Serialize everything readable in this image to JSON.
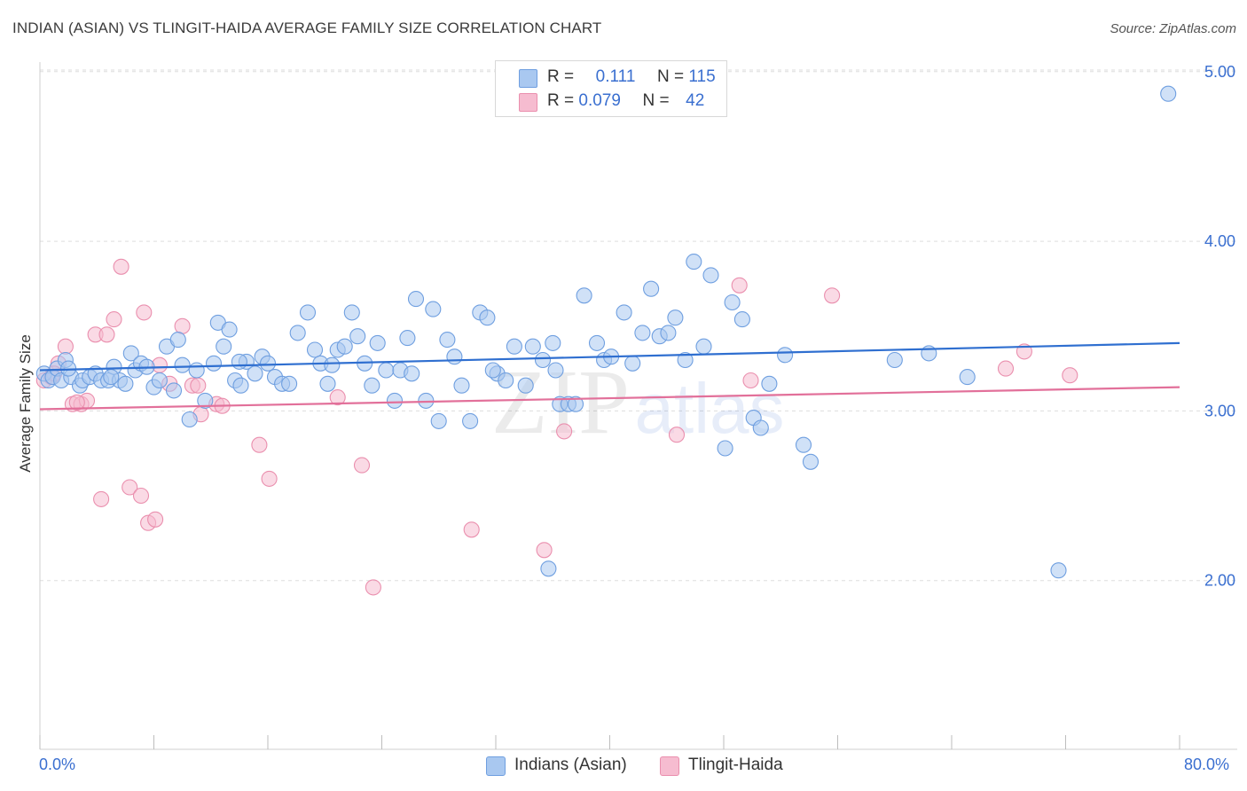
{
  "header": {
    "title": "INDIAN (ASIAN) VS TLINGIT-HAIDA AVERAGE FAMILY SIZE CORRELATION CHART",
    "source": "Source: ZipAtlas.com"
  },
  "watermark": {
    "zip": "ZIP",
    "atlas": "atlas"
  },
  "legend_top": {
    "rows": [
      {
        "r_label": "R =",
        "r_value": "0.111",
        "n_label": "N =",
        "n_value": "115"
      },
      {
        "r_label": "R =",
        "r_value": "0.079",
        "n_label": "N =",
        "n_value": "42"
      }
    ]
  },
  "legend_bottom": {
    "series_a": "Indians (Asian)",
    "series_b": "Tlingit-Haida"
  },
  "colors": {
    "blue_fill": "#a9c8f0",
    "blue_stroke": "#6f9fe0",
    "blue_line": "#2f6fd0",
    "pink_fill": "#f6bcd0",
    "pink_stroke": "#ea8fae",
    "pink_line": "#e2709a",
    "accent_text": "#3a6fd0",
    "grid": "#dddddd"
  },
  "chart_data": {
    "type": "scatter",
    "title": "INDIAN (ASIAN) VS TLINGIT-HAIDA AVERAGE FAMILY SIZE CORRELATION CHART",
    "xlabel": "",
    "ylabel": "Average Family Size",
    "xlim": [
      0,
      80
    ],
    "ylim": [
      1.0,
      5.1
    ],
    "x_tick_labels": {
      "min": "0.0%",
      "max": "80.0%"
    },
    "y_ticks": [
      {
        "value": 2.0,
        "label": "2.00"
      },
      {
        "value": 3.0,
        "label": "3.00"
      },
      {
        "value": 4.0,
        "label": "4.00"
      },
      {
        "value": 5.0,
        "label": "5.00"
      }
    ],
    "series": [
      {
        "name": "Indians (Asian)",
        "color_key": "blue",
        "R": 0.111,
        "N": 115,
        "trend": {
          "x0": 0,
          "y0": 3.24,
          "x1": 80,
          "y1": 3.4
        },
        "points": [
          [
            0.3,
            3.22
          ],
          [
            0.6,
            3.18
          ],
          [
            0.9,
            3.2
          ],
          [
            1.2,
            3.25
          ],
          [
            1.5,
            3.18
          ],
          [
            1.8,
            3.3
          ],
          [
            2.2,
            3.2
          ],
          [
            2.8,
            3.15
          ],
          [
            3.0,
            3.18
          ],
          [
            3.5,
            3.2
          ],
          [
            3.9,
            3.22
          ],
          [
            4.3,
            3.18
          ],
          [
            4.8,
            3.18
          ],
          [
            5.2,
            3.26
          ],
          [
            5.6,
            3.18
          ],
          [
            6.0,
            3.16
          ],
          [
            6.4,
            3.34
          ],
          [
            6.7,
            3.24
          ],
          [
            7.1,
            3.28
          ],
          [
            7.5,
            3.26
          ],
          [
            8.0,
            3.14
          ],
          [
            8.4,
            3.18
          ],
          [
            8.9,
            3.38
          ],
          [
            9.4,
            3.12
          ],
          [
            10.0,
            3.27
          ],
          [
            10.5,
            2.95
          ],
          [
            11.0,
            3.24
          ],
          [
            11.6,
            3.06
          ],
          [
            12.2,
            3.28
          ],
          [
            12.5,
            3.52
          ],
          [
            12.9,
            3.38
          ],
          [
            13.3,
            3.48
          ],
          [
            13.7,
            3.18
          ],
          [
            14.1,
            3.15
          ],
          [
            14.5,
            3.29
          ],
          [
            15.1,
            3.22
          ],
          [
            15.6,
            3.32
          ],
          [
            16.0,
            3.28
          ],
          [
            16.5,
            3.2
          ],
          [
            17.0,
            3.16
          ],
          [
            17.5,
            3.16
          ],
          [
            18.1,
            3.46
          ],
          [
            18.8,
            3.58
          ],
          [
            19.3,
            3.36
          ],
          [
            19.7,
            3.28
          ],
          [
            20.2,
            3.16
          ],
          [
            20.5,
            3.27
          ],
          [
            20.9,
            3.36
          ],
          [
            21.4,
            3.38
          ],
          [
            21.9,
            3.58
          ],
          [
            22.3,
            3.44
          ],
          [
            22.8,
            3.28
          ],
          [
            23.3,
            3.15
          ],
          [
            23.7,
            3.4
          ],
          [
            24.3,
            3.24
          ],
          [
            24.9,
            3.06
          ],
          [
            25.3,
            3.24
          ],
          [
            25.8,
            3.43
          ],
          [
            26.4,
            3.66
          ],
          [
            27.1,
            3.06
          ],
          [
            27.6,
            3.6
          ],
          [
            28.0,
            2.94
          ],
          [
            28.6,
            3.42
          ],
          [
            29.1,
            3.32
          ],
          [
            29.6,
            3.15
          ],
          [
            30.2,
            2.94
          ],
          [
            30.9,
            3.58
          ],
          [
            31.4,
            3.55
          ],
          [
            32.1,
            3.22
          ],
          [
            32.7,
            3.18
          ],
          [
            33.3,
            3.38
          ],
          [
            34.1,
            3.15
          ],
          [
            34.6,
            3.38
          ],
          [
            35.3,
            3.3
          ],
          [
            35.7,
            2.07
          ],
          [
            36.0,
            3.4
          ],
          [
            36.5,
            3.04
          ],
          [
            37.1,
            3.04
          ],
          [
            37.6,
            3.04
          ],
          [
            38.2,
            3.68
          ],
          [
            39.1,
            3.4
          ],
          [
            39.6,
            3.3
          ],
          [
            40.1,
            3.32
          ],
          [
            41.0,
            3.58
          ],
          [
            41.6,
            3.28
          ],
          [
            42.3,
            3.46
          ],
          [
            42.9,
            3.72
          ],
          [
            43.5,
            3.44
          ],
          [
            44.1,
            3.46
          ],
          [
            44.6,
            3.55
          ],
          [
            45.3,
            3.3
          ],
          [
            45.9,
            3.88
          ],
          [
            46.6,
            3.38
          ],
          [
            47.1,
            3.8
          ],
          [
            48.1,
            2.78
          ],
          [
            48.6,
            3.64
          ],
          [
            49.3,
            3.54
          ],
          [
            50.1,
            2.96
          ],
          [
            50.6,
            2.9
          ],
          [
            51.2,
            3.16
          ],
          [
            52.3,
            3.33
          ],
          [
            53.6,
            2.8
          ],
          [
            54.1,
            2.7
          ],
          [
            60.0,
            3.3
          ],
          [
            62.4,
            3.34
          ],
          [
            65.1,
            3.2
          ],
          [
            71.5,
            2.06
          ],
          [
            79.2,
            4.87
          ],
          [
            2.0,
            3.25
          ],
          [
            5.0,
            3.2
          ],
          [
            9.7,
            3.42
          ],
          [
            14.0,
            3.29
          ],
          [
            26.1,
            3.22
          ],
          [
            31.8,
            3.24
          ],
          [
            36.2,
            3.24
          ]
        ]
      },
      {
        "name": "Tlingit-Haida",
        "color_key": "pink",
        "R": 0.079,
        "N": 42,
        "trend": {
          "x0": 0,
          "y0": 3.01,
          "x1": 80,
          "y1": 3.14
        },
        "points": [
          [
            0.3,
            3.18
          ],
          [
            0.8,
            3.2
          ],
          [
            1.3,
            3.28
          ],
          [
            1.8,
            3.38
          ],
          [
            2.3,
            3.04
          ],
          [
            2.9,
            3.04
          ],
          [
            3.3,
            3.06
          ],
          [
            3.9,
            3.45
          ],
          [
            4.3,
            2.48
          ],
          [
            4.7,
            3.45
          ],
          [
            5.2,
            3.54
          ],
          [
            5.7,
            3.85
          ],
          [
            6.3,
            2.55
          ],
          [
            7.1,
            2.5
          ],
          [
            7.3,
            3.58
          ],
          [
            7.6,
            2.34
          ],
          [
            8.1,
            2.36
          ],
          [
            8.4,
            3.27
          ],
          [
            9.1,
            3.16
          ],
          [
            10.0,
            3.5
          ],
          [
            10.7,
            3.15
          ],
          [
            11.1,
            3.15
          ],
          [
            11.3,
            2.98
          ],
          [
            12.4,
            3.04
          ],
          [
            12.8,
            3.03
          ],
          [
            15.4,
            2.8
          ],
          [
            16.1,
            2.6
          ],
          [
            20.9,
            3.08
          ],
          [
            22.6,
            2.68
          ],
          [
            23.4,
            1.96
          ],
          [
            30.3,
            2.3
          ],
          [
            35.4,
            2.18
          ],
          [
            36.8,
            2.88
          ],
          [
            44.7,
            2.86
          ],
          [
            49.1,
            3.74
          ],
          [
            49.9,
            3.18
          ],
          [
            55.6,
            3.68
          ],
          [
            67.8,
            3.25
          ],
          [
            69.1,
            3.35
          ],
          [
            72.3,
            3.21
          ],
          [
            1.0,
            3.22
          ],
          [
            2.6,
            3.05
          ]
        ]
      }
    ]
  }
}
